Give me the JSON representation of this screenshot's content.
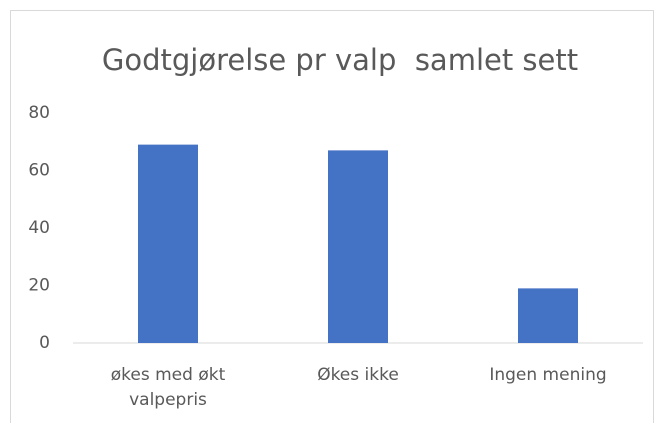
{
  "chart_data": {
    "type": "bar",
    "title": "Godtgjørelse pr valp  samlet sett",
    "categories": [
      "økes med økt valpepris",
      "Økes ikke",
      "Ingen mening"
    ],
    "values": [
      69,
      67,
      19
    ],
    "color": "#4472c4",
    "ylim": [
      0,
      80
    ],
    "yticks": [
      0,
      20,
      40,
      60,
      80
    ],
    "grid": false
  }
}
